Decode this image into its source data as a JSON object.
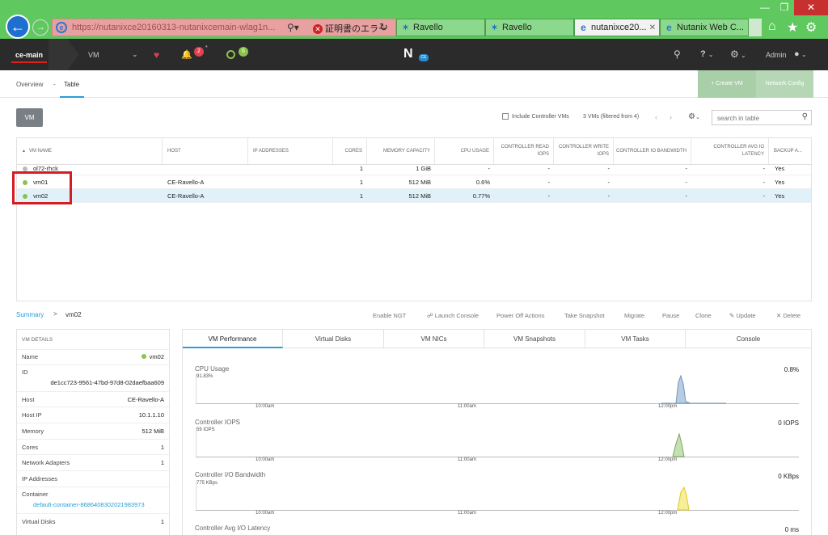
{
  "browser": {
    "address": "https://nutanixce20160313-nutanixcemain-wlag1n...",
    "cert_error": "証明書のエラー",
    "tabs": [
      {
        "label": "Ravello",
        "active": false
      },
      {
        "label": "Ravello",
        "active": false
      },
      {
        "label": "nutanixce20...",
        "active": true
      },
      {
        "label": "Nutanix Web C...",
        "active": false
      }
    ]
  },
  "nav": {
    "cluster": "ce-main",
    "section": "VM",
    "alert_count": "2",
    "star": "*",
    "ok_count": "6",
    "logo_letter": "N",
    "logo_badge": "CE",
    "help": "?",
    "user": "Admin"
  },
  "subnav": {
    "overview": "Overview",
    "sep": "-",
    "table": "Table",
    "create_vm": "+ Create VM",
    "network_config": "Network Config"
  },
  "toolbar": {
    "vm_button": "VM",
    "include_cvms": "Include Controller VMs",
    "count": "3 VMs (filtered from 4)",
    "search_placeholder": "search in table"
  },
  "table": {
    "sort_arrow": "▲",
    "headers": [
      "VM NAME",
      "HOST",
      "IP ADDRESSES",
      "CORES",
      "MEMORY CAPACITY",
      "CPU USAGE",
      "CONTROLLER READ IOPS",
      "CONTROLLER WRITE IOPS",
      "CONTROLLER IO BANDWIDTH",
      "CONTROLLER AVG IO LATENCY",
      "BACKUP A..."
    ],
    "rows": [
      {
        "name": "ol72-rhck",
        "host": "",
        "ip": "",
        "cores": "1",
        "memory": "1 GiB",
        "cpu": "-",
        "read": "-",
        "write": "-",
        "bw": "-",
        "lat": "-",
        "backup": "Yes",
        "status": "off"
      },
      {
        "name": "vm01",
        "host": "CE-Ravello-A",
        "ip": "",
        "cores": "1",
        "memory": "512 MiB",
        "cpu": "0.6%",
        "read": "-",
        "write": "-",
        "bw": "-",
        "lat": "-",
        "backup": "Yes",
        "status": "on"
      },
      {
        "name": "vm02",
        "host": "CE-Ravello-A",
        "ip": "",
        "cores": "1",
        "memory": "512 MiB",
        "cpu": "0.77%",
        "read": "-",
        "write": "-",
        "bw": "-",
        "lat": "-",
        "backup": "Yes",
        "status": "on"
      }
    ]
  },
  "summary": {
    "link": "Summary",
    "sep": ">",
    "vm": "vm02",
    "actions": [
      "Enable NGT",
      "Launch Console",
      "Power Off Actions",
      "Take Snapshot",
      "Migrate",
      "Pause",
      "Clone",
      "Update",
      "Delete"
    ]
  },
  "details": {
    "title": "VM DETAILS",
    "name_label": "Name",
    "name": "vm02",
    "id_label": "ID",
    "id": "de1cc723-9561-47bd-97d8-02daefbaa609",
    "host_label": "Host",
    "host": "CE-Ravello-A",
    "hostip_label": "Host IP",
    "hostip": "10.1.1.10",
    "mem_label": "Memory",
    "mem": "512 MiB",
    "cores_label": "Cores",
    "cores": "1",
    "na_label": "Network Adapters",
    "na": "1",
    "ip_label": "IP Addresses",
    "container_label": "Container",
    "container": "default-container-8686408302021983973",
    "vd_label": "Virtual Disks",
    "vd": "1"
  },
  "perf_tabs": [
    "VM Performance",
    "Virtual Disks",
    "VM NICs",
    "VM Snapshots",
    "VM Tasks",
    "Console"
  ],
  "graphs": [
    {
      "title": "CPU Usage",
      "value": "0.8%",
      "max": "91.83%",
      "color": "#b8cde0",
      "stroke": "#6f95bd"
    },
    {
      "title": "Controller IOPS",
      "value": "0 IOPS",
      "max": "59 IOPS",
      "color": "#c6dfb4",
      "stroke": "#7aa85a"
    },
    {
      "title": "Controller I/O Bandwidth",
      "value": "0 KBps",
      "max": "775 KBps",
      "color": "#f6ee9a",
      "stroke": "#e0c820"
    },
    {
      "title": "Controller Avg I/O Latency",
      "value": "0 ms",
      "max": "",
      "color": "#ddd",
      "stroke": "#aaa"
    }
  ],
  "time_ticks": [
    "10:00am",
    "11:00am",
    "12:00pm"
  ]
}
